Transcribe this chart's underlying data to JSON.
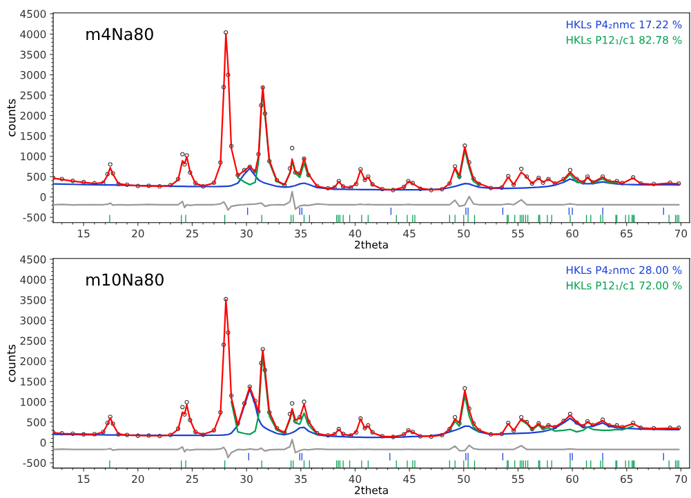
{
  "chart_data": [
    {
      "type": "line",
      "title": "m4Na80",
      "xlabel": "2theta",
      "ylabel": "counts",
      "xlim": [
        12.2,
        70.8
      ],
      "xticks": [
        15,
        20,
        25,
        30,
        35,
        40,
        45,
        50,
        55,
        60,
        65,
        70
      ],
      "ylim": [
        -630,
        4520
      ],
      "yticks": [
        -500,
        0,
        500,
        1000,
        1500,
        2000,
        2500,
        3000,
        3500,
        4000,
        4500
      ],
      "legend": "top right",
      "x": [
        12.2,
        13,
        14,
        15,
        16,
        16.8,
        17.2,
        17.45,
        17.7,
        18.2,
        19,
        20,
        21,
        22,
        23,
        23.7,
        24.1,
        24.3,
        24.5,
        24.8,
        25.3,
        26,
        27,
        27.6,
        27.9,
        28.1,
        28.3,
        28.6,
        29.2,
        29.8,
        30.3,
        30.8,
        31.1,
        31.35,
        31.5,
        31.7,
        32.1,
        32.8,
        33.5,
        34.0,
        34.2,
        34.5,
        34.9,
        35.3,
        35.7,
        36.5,
        37.5,
        38.1,
        38.5,
        38.9,
        39.6,
        40.1,
        40.5,
        40.9,
        41.2,
        41.6,
        42.5,
        43.5,
        44.5,
        44.9,
        45.3,
        46,
        47,
        48,
        48.7,
        49.2,
        49.6,
        50.1,
        50.5,
        50.9,
        51.4,
        52.5,
        53.5,
        54.1,
        54.6,
        55.3,
        55.8,
        56.3,
        56.9,
        57.3,
        57.8,
        58.4,
        59.2,
        59.8,
        60.4,
        61.0,
        61.4,
        61.9,
        62.8,
        63.4,
        64.1,
        64.6,
        65.6,
        66.3,
        67.5,
        69.0,
        69.8
      ],
      "series": [
        {
          "type": "scatter",
          "marker": "circle",
          "color": "#333333",
          "values": [
            470,
            440,
            395,
            365,
            335,
            345,
            560,
            800,
            580,
            320,
            300,
            270,
            275,
            260,
            290,
            440,
            1050,
            800,
            1020,
            600,
            340,
            260,
            350,
            850,
            2700,
            4040,
            3000,
            1250,
            540,
            660,
            740,
            630,
            1050,
            2250,
            2690,
            2050,
            880,
            410,
            290,
            700,
            1200,
            600,
            580,
            940,
            540,
            270,
            215,
            230,
            390,
            255,
            230,
            320,
            680,
            420,
            500,
            310,
            195,
            170,
            250,
            390,
            340,
            200,
            170,
            190,
            330,
            750,
            500,
            1260,
            850,
            450,
            320,
            220,
            230,
            510,
            300,
            690,
            500,
            330,
            470,
            350,
            440,
            330,
            440,
            660,
            440,
            360,
            500,
            360,
            500,
            380,
            390,
            340,
            480,
            330,
            320,
            350,
            330
          ]
        },
        {
          "color": "#1a3fd6",
          "values": [
            320,
            315,
            310,
            305,
            300,
            295,
            295,
            295,
            295,
            290,
            285,
            280,
            275,
            270,
            265,
            262,
            260,
            260,
            258,
            258,
            256,
            255,
            255,
            258,
            260,
            262,
            265,
            275,
            340,
            560,
            700,
            520,
            420,
            380,
            360,
            340,
            310,
            260,
            240,
            250,
            260,
            280,
            320,
            340,
            310,
            230,
            200,
            190,
            190,
            188,
            185,
            183,
            182,
            180,
            180,
            180,
            178,
            176,
            175,
            175,
            175,
            176,
            180,
            195,
            230,
            260,
            290,
            330,
            320,
            280,
            240,
            215,
            210,
            212,
            215,
            220,
            225,
            230,
            240,
            250,
            260,
            290,
            360,
            440,
            380,
            330,
            325,
            330,
            370,
            340,
            320,
            310,
            305,
            300,
            300,
            298,
            296
          ]
        },
        {
          "color": "#00a050",
          "values": [
            null,
            null,
            null,
            null,
            null,
            null,
            null,
            null,
            null,
            null,
            null,
            null,
            null,
            null,
            null,
            null,
            null,
            null,
            null,
            null,
            null,
            null,
            null,
            null,
            null,
            null,
            null,
            null,
            470,
            370,
            300,
            360,
            850,
            2100,
            2600,
            2000,
            850,
            380,
            290,
            580,
            870,
            580,
            480,
            830,
            500,
            null,
            null,
            null,
            null,
            null,
            null,
            null,
            null,
            null,
            null,
            null,
            null,
            null,
            null,
            null,
            null,
            null,
            null,
            null,
            null,
            680,
            450,
            1150,
            720,
            380,
            300,
            null,
            null,
            null,
            null,
            null,
            null,
            null,
            null,
            null,
            null,
            null,
            400,
            560,
            360,
            340,
            480,
            340,
            450,
            340,
            360,
            null,
            null,
            null,
            null,
            null,
            null
          ]
        },
        {
          "color": "#ff0000",
          "values": [
            460,
            430,
            390,
            360,
            330,
            350,
            530,
            720,
            560,
            330,
            290,
            280,
            270,
            265,
            280,
            420,
            890,
            820,
            985,
            620,
            330,
            270,
            340,
            800,
            2600,
            4010,
            3200,
            1200,
            520,
            650,
            750,
            620,
            1000,
            2200,
            2700,
            2100,
            900,
            400,
            300,
            600,
            930,
            620,
            560,
            950,
            560,
            260,
            210,
            230,
            380,
            250,
            230,
            330,
            660,
            420,
            490,
            300,
            190,
            175,
            240,
            380,
            330,
            210,
            175,
            190,
            330,
            720,
            520,
            1230,
            800,
            440,
            330,
            220,
            230,
            490,
            300,
            610,
            490,
            330,
            465,
            360,
            440,
            330,
            430,
            610,
            440,
            360,
            490,
            360,
            490,
            380,
            380,
            330,
            465,
            330,
            310,
            340,
            320
          ]
        },
        {
          "color": "#999999",
          "values": [
            -190,
            -185,
            -195,
            -190,
            -190,
            -190,
            -180,
            -150,
            -200,
            -190,
            -195,
            -190,
            -185,
            -190,
            -190,
            -190,
            -110,
            -260,
            -190,
            -210,
            -190,
            -190,
            -190,
            -170,
            -120,
            -200,
            -320,
            -230,
            -200,
            -190,
            -180,
            -175,
            -160,
            -150,
            -180,
            -230,
            -200,
            -190,
            -195,
            -120,
            130,
            -300,
            -220,
            -200,
            -210,
            -170,
            -190,
            -190,
            -190,
            -190,
            -190,
            -190,
            -180,
            -190,
            -185,
            -190,
            -190,
            -190,
            -190,
            -185,
            -190,
            -190,
            -190,
            -190,
            -190,
            -80,
            -230,
            -200,
            10,
            -170,
            -190,
            -190,
            -190,
            -170,
            -190,
            -70,
            -190,
            -190,
            -190,
            -190,
            -190,
            -190,
            -190,
            -170,
            -190,
            -190,
            -190,
            -190,
            -190,
            -190,
            -190,
            -190,
            -190,
            -190,
            -190,
            -190,
            -190
          ]
        },
        {
          "type": "bar",
          "name": "HKLs P4₂nmc 17.22 %",
          "color": "#1a3fd6",
          "x": [
            30.1,
            34.9,
            35.1,
            43.3,
            50.2,
            50.4,
            53.6,
            59.7,
            60.0,
            62.8,
            68.4
          ],
          "base": [
            -440,
            -440,
            -440,
            -440,
            -440,
            -440,
            -440,
            -440,
            -440,
            -440,
            -440
          ],
          "values": [
            180,
            180,
            180,
            180,
            180,
            180,
            180,
            180,
            180,
            180,
            180
          ]
        },
        {
          "type": "bar",
          "name": "HKLs P12₁/c1 82.78 %",
          "color": "#00a050",
          "x": [
            17.4,
            24.0,
            24.4,
            28.0,
            31.4,
            34.1,
            34.3,
            35.3,
            35.8,
            38.3,
            38.45,
            38.6,
            38.9,
            39.5,
            40.6,
            41.2,
            43.8,
            44.8,
            45.3,
            45.5,
            48.7,
            49.2,
            50.0,
            50.4,
            51.0,
            54.0,
            54.1,
            54.7,
            55.2,
            55.35,
            55.5,
            55.7,
            55.9,
            56.9,
            57.0,
            57.7,
            58.1,
            59.8,
            61.3,
            61.7,
            62.6,
            62.8,
            64.0,
            64.1,
            64.9,
            65.2,
            65.5,
            65.6,
            65.7,
            68.9,
            69.5,
            69.65,
            69.8
          ],
          "base": [
            -625,
            -625,
            -625,
            -625,
            -625,
            -625,
            -625,
            -625,
            -625,
            -625,
            -625,
            -625,
            -625,
            -625,
            -625,
            -625,
            -625,
            -625,
            -625,
            -625,
            -625,
            -625,
            -625,
            -625,
            -625,
            -625,
            -625,
            -625,
            -625,
            -625,
            -625,
            -625,
            -625,
            -625,
            -625,
            -625,
            -625,
            -625,
            -625,
            -625,
            -625,
            -625,
            -625,
            -625,
            -625,
            -625,
            -625,
            -625,
            -625,
            -625,
            -625,
            -625,
            -625
          ],
          "values": [
            185,
            185,
            185,
            185,
            185,
            185,
            185,
            185,
            185,
            185,
            185,
            185,
            185,
            185,
            185,
            185,
            185,
            185,
            185,
            185,
            185,
            185,
            185,
            185,
            185,
            185,
            185,
            185,
            185,
            185,
            185,
            185,
            185,
            185,
            185,
            185,
            185,
            185,
            185,
            185,
            185,
            185,
            185,
            185,
            185,
            185,
            185,
            185,
            185,
            185,
            185,
            185,
            185
          ]
        }
      ]
    },
    {
      "type": "line",
      "title": "m10Na80",
      "xlabel": "2theta",
      "ylabel": "counts",
      "xlim": [
        12.2,
        70.8
      ],
      "xticks": [
        15,
        20,
        25,
        30,
        35,
        40,
        45,
        50,
        55,
        60,
        65,
        70
      ],
      "ylim": [
        -630,
        4520
      ],
      "yticks": [
        -500,
        0,
        500,
        1000,
        1500,
        2000,
        2500,
        3000,
        3500,
        4000,
        4500
      ],
      "legend": "top right",
      "x": [
        12.2,
        13,
        14,
        15,
        16,
        16.8,
        17.2,
        17.45,
        17.7,
        18.2,
        19,
        20,
        21,
        22,
        23,
        23.7,
        24.1,
        24.3,
        24.5,
        24.8,
        25.3,
        26,
        27,
        27.6,
        27.9,
        28.1,
        28.3,
        28.6,
        29.2,
        29.8,
        30.3,
        30.8,
        31.1,
        31.35,
        31.5,
        31.7,
        32.1,
        32.8,
        33.5,
        34.0,
        34.2,
        34.5,
        34.9,
        35.3,
        35.7,
        36.5,
        37.5,
        38.1,
        38.5,
        38.9,
        39.6,
        40.1,
        40.5,
        40.9,
        41.2,
        41.6,
        42.5,
        43.5,
        44.5,
        44.9,
        45.3,
        46,
        47,
        48,
        48.7,
        49.2,
        49.6,
        50.1,
        50.5,
        50.9,
        51.4,
        52.5,
        53.5,
        54.1,
        54.6,
        55.3,
        55.8,
        56.3,
        56.9,
        57.3,
        57.8,
        58.4,
        59.2,
        59.8,
        60.4,
        61.0,
        61.4,
        61.9,
        62.8,
        63.4,
        64.1,
        64.6,
        65.6,
        66.3,
        67.5,
        69.0,
        69.8
      ],
      "series": [
        {
          "type": "scatter",
          "marker": "circle",
          "color": "#333333",
          "values": [
            250,
            225,
            215,
            200,
            205,
            260,
            480,
            630,
            460,
            200,
            185,
            165,
            170,
            160,
            185,
            340,
            870,
            690,
            990,
            550,
            260,
            190,
            300,
            740,
            2400,
            3520,
            2700,
            1150,
            470,
            960,
            1370,
            1020,
            760,
            1950,
            2290,
            1780,
            740,
            350,
            240,
            700,
            960,
            530,
            620,
            1000,
            510,
            230,
            175,
            200,
            330,
            210,
            170,
            250,
            590,
            350,
            420,
            250,
            155,
            135,
            200,
            300,
            260,
            150,
            145,
            180,
            330,
            620,
            470,
            1330,
            830,
            470,
            300,
            200,
            210,
            480,
            290,
            620,
            500,
            330,
            470,
            360,
            420,
            380,
            530,
            700,
            490,
            400,
            520,
            430,
            560,
            420,
            420,
            380,
            480,
            360,
            350,
            360,
            360
          ]
        },
        {
          "color": "#1a3fd6",
          "values": [
            200,
            198,
            195,
            192,
            190,
            188,
            186,
            185,
            185,
            184,
            182,
            180,
            178,
            176,
            175,
            175,
            175,
            175,
            175,
            175,
            175,
            176,
            178,
            180,
            185,
            190,
            195,
            230,
            420,
            900,
            1310,
            920,
            580,
            450,
            400,
            360,
            300,
            220,
            190,
            220,
            240,
            280,
            360,
            370,
            280,
            190,
            160,
            150,
            145,
            140,
            135,
            130,
            128,
            125,
            125,
            125,
            125,
            128,
            135,
            140,
            145,
            150,
            165,
            200,
            260,
            300,
            340,
            400,
            400,
            330,
            260,
            198,
            205,
            212,
            218,
            225,
            232,
            240,
            255,
            270,
            300,
            350,
            480,
            593,
            470,
            370,
            380,
            400,
            480,
            400,
            360,
            350,
            340,
            330,
            325,
            315,
            315
          ]
        },
        {
          "color": "#00a050",
          "values": [
            null,
            null,
            null,
            null,
            null,
            null,
            null,
            null,
            null,
            null,
            null,
            null,
            null,
            null,
            null,
            null,
            null,
            null,
            null,
            null,
            null,
            null,
            null,
            null,
            null,
            null,
            null,
            1000,
            260,
            220,
            200,
            280,
            650,
            1700,
            2100,
            1650,
            650,
            300,
            220,
            560,
            780,
            480,
            450,
            720,
            430,
            200,
            null,
            null,
            null,
            null,
            null,
            null,
            null,
            null,
            null,
            null,
            null,
            null,
            null,
            null,
            null,
            null,
            null,
            null,
            300,
            520,
            400,
            1150,
            650,
            380,
            260,
            null,
            null,
            null,
            null,
            540,
            460,
            310,
            430,
            320,
            360,
            280,
            300,
            322,
            260,
            300,
            380,
            320,
            300,
            300,
            320,
            310,
            400,
            null,
            null,
            null,
            null
          ]
        },
        {
          "color": "#ff0000",
          "values": [
            240,
            220,
            210,
            205,
            200,
            250,
            450,
            604,
            450,
            210,
            180,
            170,
            165,
            165,
            180,
            320,
            745,
            700,
            925,
            560,
            250,
            200,
            290,
            700,
            2300,
            3510,
            2800,
            1100,
            430,
            950,
            1366,
            1000,
            750,
            1900,
            2270,
            1800,
            750,
            340,
            240,
            600,
            830,
            550,
            600,
            943,
            520,
            220,
            170,
            200,
            320,
            200,
            170,
            260,
            576,
            350,
            406,
            240,
            150,
            140,
            190,
            294,
            250,
            160,
            150,
            180,
            330,
            576,
            480,
            1282,
            800,
            463,
            300,
            198,
            210,
            463,
            290,
            576,
            491,
            330,
            463,
            360,
            418,
            380,
            520,
            672,
            500,
            400,
            508,
            420,
            536,
            420,
            406,
            370,
            463,
            360,
            340,
            350,
            350
          ]
        },
        {
          "color": "#999999",
          "values": [
            -170,
            -165,
            -170,
            -170,
            -170,
            -170,
            -165,
            -150,
            -190,
            -170,
            -170,
            -170,
            -170,
            -170,
            -170,
            -170,
            -110,
            -230,
            -170,
            -190,
            -170,
            -170,
            -170,
            -160,
            -120,
            -200,
            -370,
            -250,
            -170,
            -180,
            -160,
            -175,
            -170,
            -140,
            -170,
            -210,
            -180,
            -170,
            -170,
            -100,
            70,
            -250,
            -200,
            -170,
            -180,
            -160,
            -170,
            -170,
            -170,
            -170,
            -170,
            -170,
            -165,
            -170,
            -165,
            -170,
            -170,
            -170,
            -170,
            -165,
            -170,
            -170,
            -170,
            -170,
            -170,
            -90,
            -200,
            -200,
            -70,
            -150,
            -170,
            -170,
            -170,
            -170,
            -170,
            -80,
            -170,
            -170,
            -170,
            -170,
            -170,
            -170,
            -170,
            -160,
            -170,
            -170,
            -170,
            -170,
            -170,
            -170,
            -170,
            -170,
            -170,
            -170,
            -170,
            -170,
            -170
          ]
        },
        {
          "type": "bar",
          "name": "HKLs P4₂nmc 28.00 %",
          "color": "#1a3fd6",
          "x": [
            30.2,
            34.9,
            35.1,
            43.2,
            50.2,
            50.4,
            53.6,
            59.8,
            60.0,
            62.8,
            68.4
          ],
          "base": [
            -440,
            -440,
            -440,
            -440,
            -440,
            -440,
            -440,
            -440,
            -440,
            -440,
            -440
          ],
          "values": [
            180,
            180,
            180,
            180,
            180,
            180,
            180,
            180,
            180,
            180,
            180
          ]
        },
        {
          "type": "bar",
          "name": "HKLs P12₁/c1 72.00 %",
          "color": "#00a050",
          "x": [
            17.4,
            24.0,
            24.4,
            28.0,
            31.4,
            34.1,
            34.3,
            35.3,
            35.8,
            38.3,
            38.45,
            38.6,
            38.9,
            39.5,
            40.6,
            41.2,
            43.8,
            44.8,
            45.3,
            45.5,
            48.7,
            49.2,
            50.0,
            50.4,
            51.0,
            54.0,
            54.1,
            54.7,
            55.2,
            55.35,
            55.5,
            55.7,
            55.9,
            56.9,
            57.0,
            57.7,
            58.1,
            59.8,
            61.3,
            61.7,
            62.6,
            62.8,
            64.0,
            64.1,
            64.9,
            65.2,
            65.5,
            65.6,
            65.7,
            68.9,
            69.5,
            69.65,
            69.8
          ],
          "base": [
            -625,
            -625,
            -625,
            -625,
            -625,
            -625,
            -625,
            -625,
            -625,
            -625,
            -625,
            -625,
            -625,
            -625,
            -625,
            -625,
            -625,
            -625,
            -625,
            -625,
            -625,
            -625,
            -625,
            -625,
            -625,
            -625,
            -625,
            -625,
            -625,
            -625,
            -625,
            -625,
            -625,
            -625,
            -625,
            -625,
            -625,
            -625,
            -625,
            -625,
            -625,
            -625,
            -625,
            -625,
            -625,
            -625,
            -625,
            -625,
            -625,
            -625,
            -625,
            -625,
            -625
          ],
          "values": [
            185,
            185,
            185,
            185,
            185,
            185,
            185,
            185,
            185,
            185,
            185,
            185,
            185,
            185,
            185,
            185,
            185,
            185,
            185,
            185,
            185,
            185,
            185,
            185,
            185,
            185,
            185,
            185,
            185,
            185,
            185,
            185,
            185,
            185,
            185,
            185,
            185,
            185,
            185,
            185,
            185,
            185,
            185,
            185,
            185,
            185,
            185,
            185,
            185,
            185,
            185,
            185,
            185
          ]
        }
      ]
    }
  ]
}
